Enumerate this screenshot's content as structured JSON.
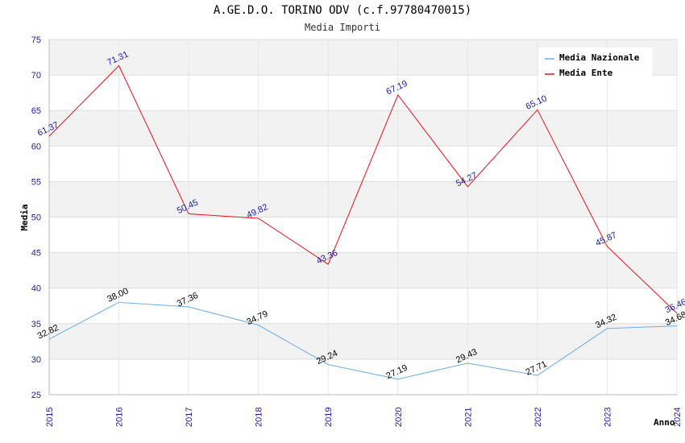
{
  "chart_data": {
    "type": "line",
    "title": "A.GE.D.O. TORINO ODV (c.f.97780470015)",
    "subtitle": "Media Importi",
    "xlabel": "Anno",
    "ylabel": "Media",
    "ylim": [
      25,
      75
    ],
    "yticks": [
      25,
      30,
      35,
      40,
      45,
      50,
      55,
      60,
      65,
      70,
      75
    ],
    "x": [
      "2015",
      "2016",
      "2017",
      "2018",
      "2019",
      "2020",
      "2021",
      "2022",
      "2023",
      "2024"
    ],
    "grid": true,
    "legend_position": "top-right",
    "series": [
      {
        "name": "Media Nazionale",
        "color": "#6aaee8",
        "label_color": "#000000",
        "values": [
          32.82,
          38.0,
          37.36,
          34.79,
          29.24,
          27.19,
          29.43,
          27.71,
          34.32,
          34.68
        ],
        "labels": [
          "32.82",
          "38.00",
          "37.36",
          "34.79",
          "29.24",
          "27.19",
          "29.43",
          "27.71",
          "34.32",
          "34.68"
        ]
      },
      {
        "name": "Media Ente",
        "color": "#e8101a",
        "label_color": "#1a1aa6",
        "values": [
          61.37,
          71.31,
          50.45,
          49.82,
          43.36,
          67.19,
          54.27,
          65.1,
          45.87,
          36.46
        ],
        "labels": [
          "61.37",
          "71.31",
          "50.45",
          "49.82",
          "43.36",
          "67.19",
          "54.27",
          "65.10",
          "45.87",
          "36.46"
        ]
      }
    ]
  }
}
